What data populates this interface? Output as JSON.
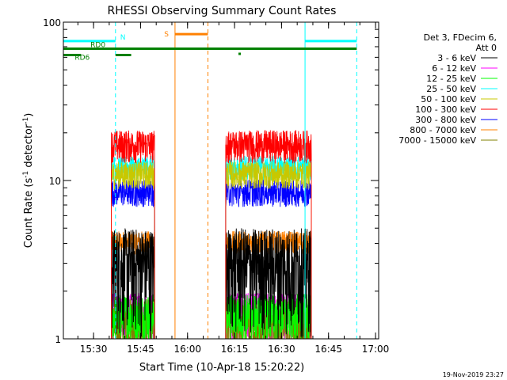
{
  "chart_data": {
    "type": "line",
    "title": "RHESSI Observing Summary Count Rates",
    "xlabel": "Start Time (10-Apr-18 15:20:22)",
    "ylabel_main": "Count Rate (s",
    "ylabel_sup1": "-1",
    "ylabel_mid": " detector",
    "ylabel_sup2": "-1",
    "ylabel_end": ")",
    "yscale": "log",
    "ylim": [
      1,
      100
    ],
    "xlim": [
      "15:20:22",
      "17:01:00"
    ],
    "x_ticks": [
      "15:30",
      "15:45",
      "16:00",
      "16:15",
      "16:30",
      "16:45",
      "17:00"
    ],
    "y_ticks": [
      "1",
      "10",
      "100"
    ],
    "legend_header": [
      "Det 3, FDecim 6,",
      "Att 0"
    ],
    "legend_position": "right",
    "series": [
      {
        "name": "3 - 6 keV",
        "color": "#000000",
        "level": 2.0
      },
      {
        "name": "6 - 12 keV",
        "color": "#ff00ff",
        "level": 1.5
      },
      {
        "name": "12 - 25 keV",
        "color": "#00ff00",
        "level": 1.6
      },
      {
        "name": "25 - 50 keV",
        "color": "#00ffff",
        "level": 12.5
      },
      {
        "name": "50 - 100 keV",
        "color": "#c8c800",
        "level": 11.0
      },
      {
        "name": "100 - 300 keV",
        "color": "#ff0000",
        "level": 16.0
      },
      {
        "name": "300 - 800 keV",
        "color": "#0000ff",
        "level": 8.5
      },
      {
        "name": "800 - 7000 keV",
        "color": "#ff8000",
        "level": 4.0
      },
      {
        "name": "7000 - 15000 keV",
        "color": "#808000",
        "level": 1.2
      }
    ],
    "data_intervals": [
      [
        "15:35:40",
        "15:49:30"
      ],
      [
        "16:12:10",
        "16:39:30"
      ]
    ],
    "flags": {
      "N": {
        "label": "N",
        "color": "#00ffff",
        "intervals": [
          [
            "15:20:22",
            "15:37:00"
          ],
          [
            "16:37:30",
            "16:54:00"
          ]
        ],
        "level": 76
      },
      "S": {
        "label": "S",
        "color": "#ff8000",
        "intervals": [
          [
            "15:56:00",
            "16:06:30"
          ]
        ],
        "level": 84
      },
      "RD0": {
        "label": "RD0",
        "color": "#008000",
        "intervals": [
          [
            "15:20:22",
            "16:54:00"
          ]
        ],
        "level": 68
      },
      "RD6": {
        "label": "RD6",
        "color": "#008000",
        "intervals": [
          [
            "15:20:22",
            "15:26:00"
          ],
          [
            "15:37:00",
            "15:42:00"
          ]
        ],
        "level": 62
      }
    },
    "vlines": [
      {
        "time": "15:37:00",
        "color": "#00ffff",
        "style": "dashed"
      },
      {
        "time": "16:37:30",
        "color": "#00ffff",
        "style": "solid"
      },
      {
        "time": "16:54:00",
        "color": "#00ffff",
        "style": "dashed"
      },
      {
        "time": "15:56:00",
        "color": "#ff8000",
        "style": "solid"
      },
      {
        "time": "16:06:30",
        "color": "#ff8000",
        "style": "dashed"
      }
    ],
    "timestamp": "19-Nov-2019 23:27"
  }
}
